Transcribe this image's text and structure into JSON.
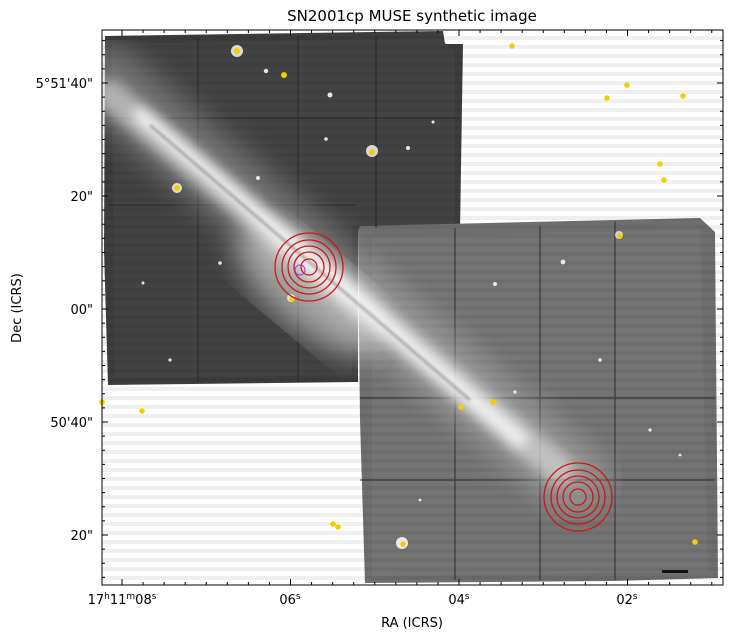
{
  "title": "SN2001cp MUSE synthetic image",
  "xlabel": "RA (ICRS)",
  "ylabel": "Dec (ICRS)",
  "x_ticks": [
    {
      "main": "17",
      "u1": "h",
      "mid1": "11",
      "u2": "m",
      "mid2": "08",
      "u3": "s"
    },
    {
      "main": "06",
      "u1": "s"
    },
    {
      "main": "04",
      "u1": "s"
    },
    {
      "main": "02",
      "u1": "s"
    }
  ],
  "y_ticks": [
    "5°51'40\"",
    "20\"",
    "00\"",
    "50'40\"",
    "20\""
  ],
  "colors": {
    "star_markers": "#f2cf00",
    "region_circles": "#d11515",
    "small_circle": "#a23bd1"
  }
}
